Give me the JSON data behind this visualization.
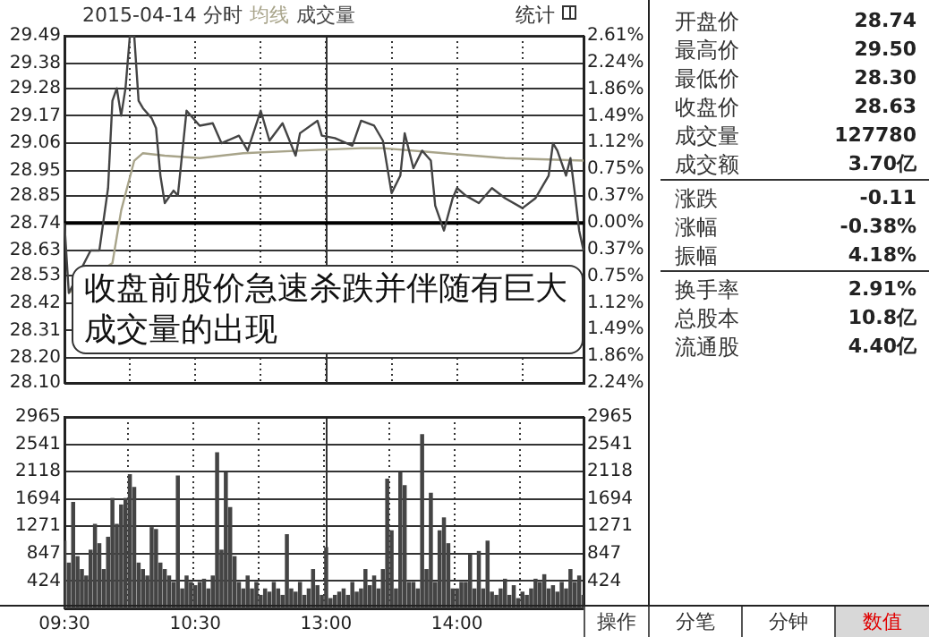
{
  "chart_data": [
    {
      "type": "line",
      "title": "2015-04-14 分时",
      "legend": "top left",
      "grid": true,
      "tick_labels": "y",
      "marker": "none",
      "line_style": "solid",
      "annotations": [
        "收盘前股价急速杀跌并伴随有巨大成交量的出现",
        "统计"
      ],
      "categories": [
        null,
        null,
        null,
        null,
        null,
        null,
        null,
        null,
        null,
        null,
        null,
        null,
        null,
        null,
        null,
        null,
        null,
        null,
        null,
        null,
        null,
        null,
        null,
        null,
        null,
        null,
        null,
        null,
        null,
        null,
        null,
        null,
        null,
        null,
        null,
        null,
        null,
        null,
        null,
        null,
        null,
        null,
        null,
        null,
        null,
        null,
        null,
        null,
        null,
        null,
        null,
        null,
        null,
        null,
        null,
        null,
        null,
        null,
        null,
        null,
        null,
        null,
        null,
        null,
        null,
        null,
        null,
        null,
        null,
        null,
        null,
        null,
        null,
        null,
        null,
        null,
        null,
        null,
        null,
        null,
        null,
        null,
        null,
        null,
        null,
        null,
        null,
        null,
        null,
        null,
        null,
        null,
        null,
        null,
        null,
        null,
        null,
        null,
        null,
        null,
        null,
        null,
        null,
        null,
        null,
        null,
        null,
        null,
        null,
        null,
        null,
        null,
        null,
        null,
        null,
        null,
        null,
        null,
        null,
        null
      ],
      "ylim": [
        28.1,
        29.49
      ],
      "yticks": [
        29.49,
        29.38,
        29.28,
        29.17,
        29.06,
        28.95,
        28.85,
        28.74,
        28.63,
        28.53,
        28.42,
        28.31,
        {
          "value": 28.2,
          "label": "28.20"
        },
        {
          "value": 28.1,
          "label": "28.10"
        }
      ],
      "y2lim": [
        -2.24,
        2.61
      ],
      "y2ticks": [
        {
          "value": 2.61,
          "label": "2.61%"
        },
        {
          "value": 2.24,
          "label": "2.24%"
        },
        {
          "value": 1.86,
          "label": "1.86%"
        },
        {
          "value": 1.49,
          "label": "1.49%"
        },
        {
          "value": 1.12,
          "label": "1.12%"
        },
        {
          "value": 0.75,
          "label": "0.75%"
        },
        {
          "value": 0.37,
          "label": "0.37%"
        },
        {
          "value": 0,
          "label": "0.00%"
        },
        {
          "value": -0.37,
          "label": "0.37%"
        },
        {
          "value": -0.75,
          "label": "0.75%"
        },
        {
          "value": -1.12,
          "label": "1.12%"
        },
        {
          "value": -1.49,
          "label": "1.49%"
        },
        {
          "value": -1.86,
          "label": "1.86%"
        },
        {
          "value": -2.24,
          "label": "2.24%"
        }
      ],
      "ref_lines": [
        {
          "axis": "y",
          "value": 28.74,
          "color": "#000000"
        }
      ],
      "series": [
        {
          "color": "#444444",
          "values": [
            28.74,
            28.46,
            null,
            null,
            null,
            null,
            28.63,
            null,
            28.63,
            null,
            28.88,
            29.23,
            29.28,
            29.17,
            29.28,
            29.49,
            29.49,
            29.23,
            29.2,
            null,
            29.16,
            29.12,
            28.93,
            28.82,
            null,
            28.87,
            28.85,
            null,
            29.19,
            null,
            null,
            29.13,
            null,
            null,
            29.14,
            null,
            29.06,
            null,
            null,
            null,
            29.09,
            null,
            29.03,
            null,
            null,
            29.19,
            null,
            29.07,
            null,
            null,
            29.14,
            null,
            null,
            29.01,
            29.1,
            null,
            null,
            null,
            29.15,
            29.09,
            null,
            null,
            29.08,
            null,
            null,
            null,
            29.05,
            null,
            29.15,
            null,
            null,
            29.13,
            null,
            29.07,
            null,
            28.86,
            null,
            28.93,
            29.1,
            null,
            28.96,
            null,
            29.03,
            29.01,
            28.99,
            28.81,
            null,
            28.71,
            null,
            28.84,
            28.88,
            null,
            28.85,
            null,
            null,
            28.82,
            null,
            null,
            28.88,
            null,
            null,
            28.84,
            null,
            null,
            null,
            28.8,
            null,
            null,
            28.84,
            null,
            null,
            28.93,
            29.06,
            29.03,
            null,
            28.93,
            29,
            28.86,
            28.71,
            28.63
          ]
        },
        {
          "name": "均线",
          "color": "#a8a48a",
          "values": [
            null,
            28.46,
            null,
            null,
            null,
            null,
            null,
            null,
            null,
            null,
            null,
            28.58,
            null,
            28.79,
            null,
            null,
            28.99,
            null,
            29.02,
            null,
            null,
            null,
            null,
            29.01,
            null,
            null,
            null,
            null,
            null,
            null,
            null,
            29,
            null,
            null,
            null,
            null,
            null,
            null,
            null,
            null,
            null,
            29.02,
            null,
            null,
            null,
            null,
            null,
            null,
            null,
            null,
            null,
            null,
            null,
            null,
            29.03,
            null,
            null,
            null,
            null,
            null,
            null,
            null,
            null,
            null,
            null,
            null,
            null,
            null,
            29.04,
            null,
            null,
            null,
            null,
            29.04,
            null,
            null,
            null,
            null,
            null,
            null,
            null,
            null,
            null,
            null,
            null,
            null,
            null,
            29.02,
            null,
            null,
            null,
            null,
            null,
            null,
            null,
            null,
            null,
            null,
            null,
            null,
            null,
            29,
            null,
            null,
            null,
            null,
            null,
            null,
            null,
            null,
            null,
            null,
            null,
            null,
            null,
            null,
            null,
            null,
            null,
            28.99
          ]
        }
      ]
    },
    {
      "type": "bar",
      "legend": "top left",
      "grid": true,
      "categories": [
        "09:30",
        null,
        null,
        null,
        null,
        null,
        null,
        null,
        null,
        null,
        null,
        null,
        null,
        null,
        null,
        null,
        null,
        null,
        null,
        null,
        null,
        null,
        null,
        null,
        null,
        null,
        null,
        null,
        null,
        null,
        "10:30",
        null,
        null,
        null,
        null,
        null,
        null,
        null,
        null,
        null,
        null,
        null,
        null,
        null,
        null,
        null,
        null,
        null,
        null,
        null,
        null,
        null,
        null,
        null,
        null,
        null,
        null,
        null,
        null,
        null,
        "13:00",
        null,
        null,
        null,
        null,
        null,
        null,
        null,
        null,
        null,
        null,
        null,
        null,
        null,
        null,
        null,
        null,
        null,
        null,
        null,
        null,
        null,
        null,
        null,
        null,
        null,
        null,
        null,
        null,
        null,
        "14:00",
        null,
        null,
        null,
        null,
        null,
        null,
        null,
        null,
        null,
        null,
        null,
        null,
        null,
        null,
        null,
        null,
        null,
        null,
        null,
        null,
        null,
        null,
        null,
        null,
        null,
        null,
        null,
        null,
        null
      ],
      "ylim": [
        0,
        2965
      ],
      "yticks": [
        424,
        847,
        1271,
        1694,
        2118,
        2541,
        2965
      ],
      "y2lim": [
        0,
        2965
      ],
      "y2ticks": [
        424,
        847,
        1271,
        1694,
        2118,
        2541,
        2965
      ],
      "series": [
        {
          "name": "成交量",
          "color": "#444444",
          "values": [
            1040,
            700,
            1640,
            800,
            600,
            500,
            900,
            1300,
            1000,
            600,
            1100,
            1700,
            1300,
            1600,
            1700,
            2070,
            1870,
            700,
            600,
            500,
            1250,
            1220,
            700,
            600,
            500,
            400,
            2050,
            300,
            500,
            400,
            350,
            400,
            450,
            300,
            500,
            2410,
            900,
            2100,
            1560,
            800,
            400,
            300,
            500,
            300,
            400,
            200,
            300,
            250,
            400,
            300,
            200,
            1140,
            300,
            250,
            400,
            200,
            300,
            600,
            350,
            200,
            940,
            150,
            200,
            250,
            300,
            200,
            400,
            250,
            300,
            600,
            350,
            500,
            300,
            600,
            2000,
            1200,
            300,
            2100,
            1900,
            400,
            400,
            300,
            2690,
            600,
            1780,
            400,
            1200,
            1400,
            1000,
            300,
            300,
            400,
            400,
            830,
            300,
            880,
            300,
            1040,
            250,
            200,
            300,
            450,
            200,
            350,
            150,
            250,
            200,
            300,
            450,
            400,
            520,
            300,
            350,
            250,
            400,
            300,
            600,
            400,
            500,
            200
          ]
        }
      ]
    },
    {
      "type": "other",
      "categories": [
        "开盘价",
        "最高价",
        "最低价",
        "收盘价",
        "成交量",
        "成交额",
        "涨跌",
        "涨幅",
        "振幅",
        "换手率",
        "总股本",
        "流通股"
      ],
      "value_labels": [
        "28.74",
        "29.50",
        "28.30",
        "28.63",
        "127780",
        "3.70亿",
        "-0.11",
        "-0.38%",
        "4.18%",
        "2.91%",
        "10.8亿",
        "4.40亿"
      ],
      "annotations": [
        "操作",
        "分笔",
        "分钟",
        "数值"
      ]
    }
  ]
}
